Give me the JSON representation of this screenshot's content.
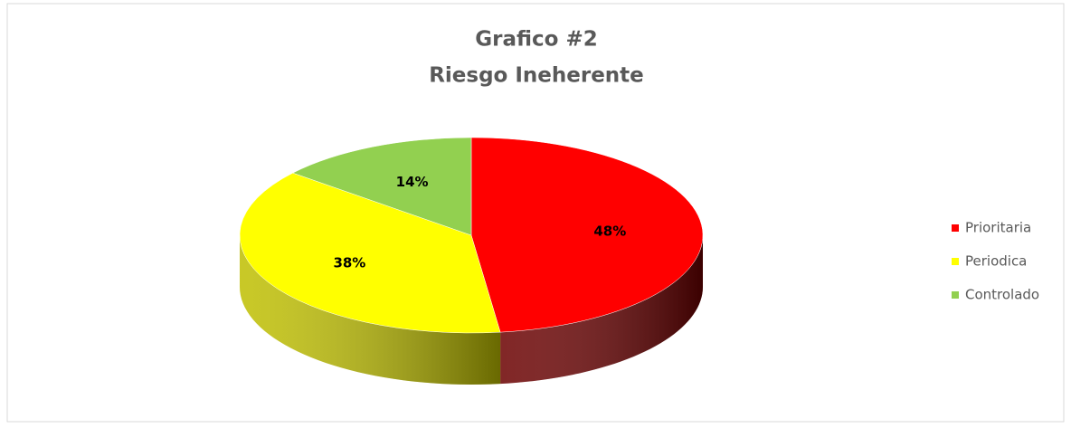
{
  "chart_data": {
    "type": "pie",
    "title": "Grafico #2",
    "subtitle": "Riesgo Ineherente",
    "categories": [
      "Prioritaria",
      "Periodica",
      "Controlado"
    ],
    "values": [
      48,
      38,
      14
    ],
    "value_labels": [
      "48%",
      "38%",
      "14%"
    ],
    "colors": [
      "#ff0000",
      "#ffff00",
      "#92d050"
    ],
    "legend": "right"
  }
}
